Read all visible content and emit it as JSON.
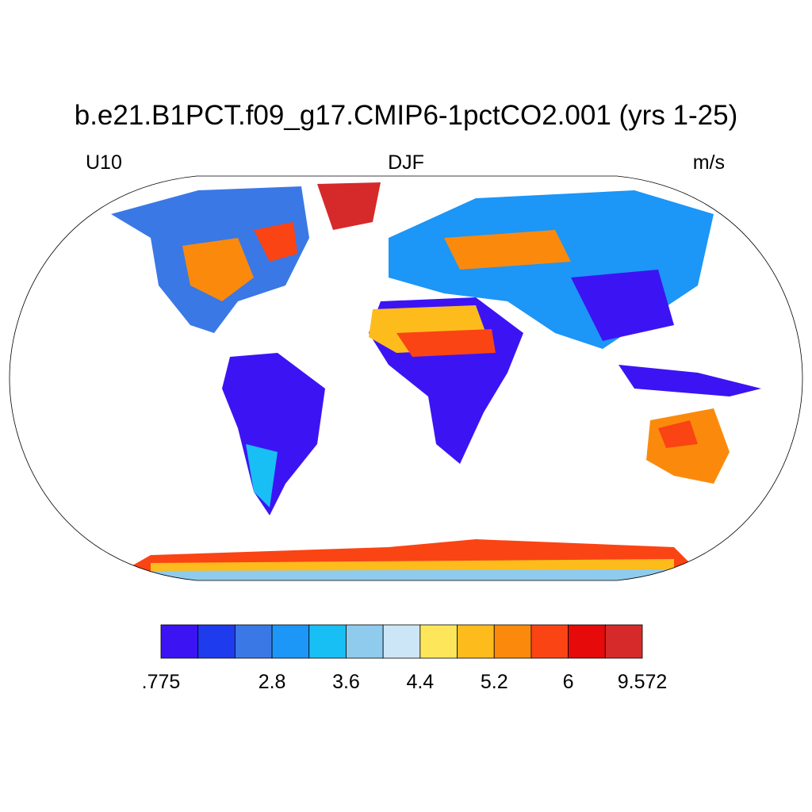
{
  "header": {
    "title": "b.e21.B1PCT.f09_g17.CMIP6-1pctCO2.001 (yrs 1-25)",
    "left": "U10",
    "center": "DJF",
    "right": "m/s"
  },
  "colorbar": {
    "colors": [
      "#3c14f4",
      "#1f3bee",
      "#3a78e6",
      "#1c96f7",
      "#18bff4",
      "#8fcbed",
      "#cde6f7",
      "#fde65a",
      "#fdbc1c",
      "#fb8a0c",
      "#fa4414",
      "#e60a0a",
      "#d62a2a"
    ],
    "ticks": [
      {
        "value": 0.775,
        "label": ".775"
      },
      null,
      null,
      2.8,
      null,
      3.6,
      null,
      4.4,
      null,
      5.2,
      null,
      6,
      null,
      9.572
    ]
  }
}
